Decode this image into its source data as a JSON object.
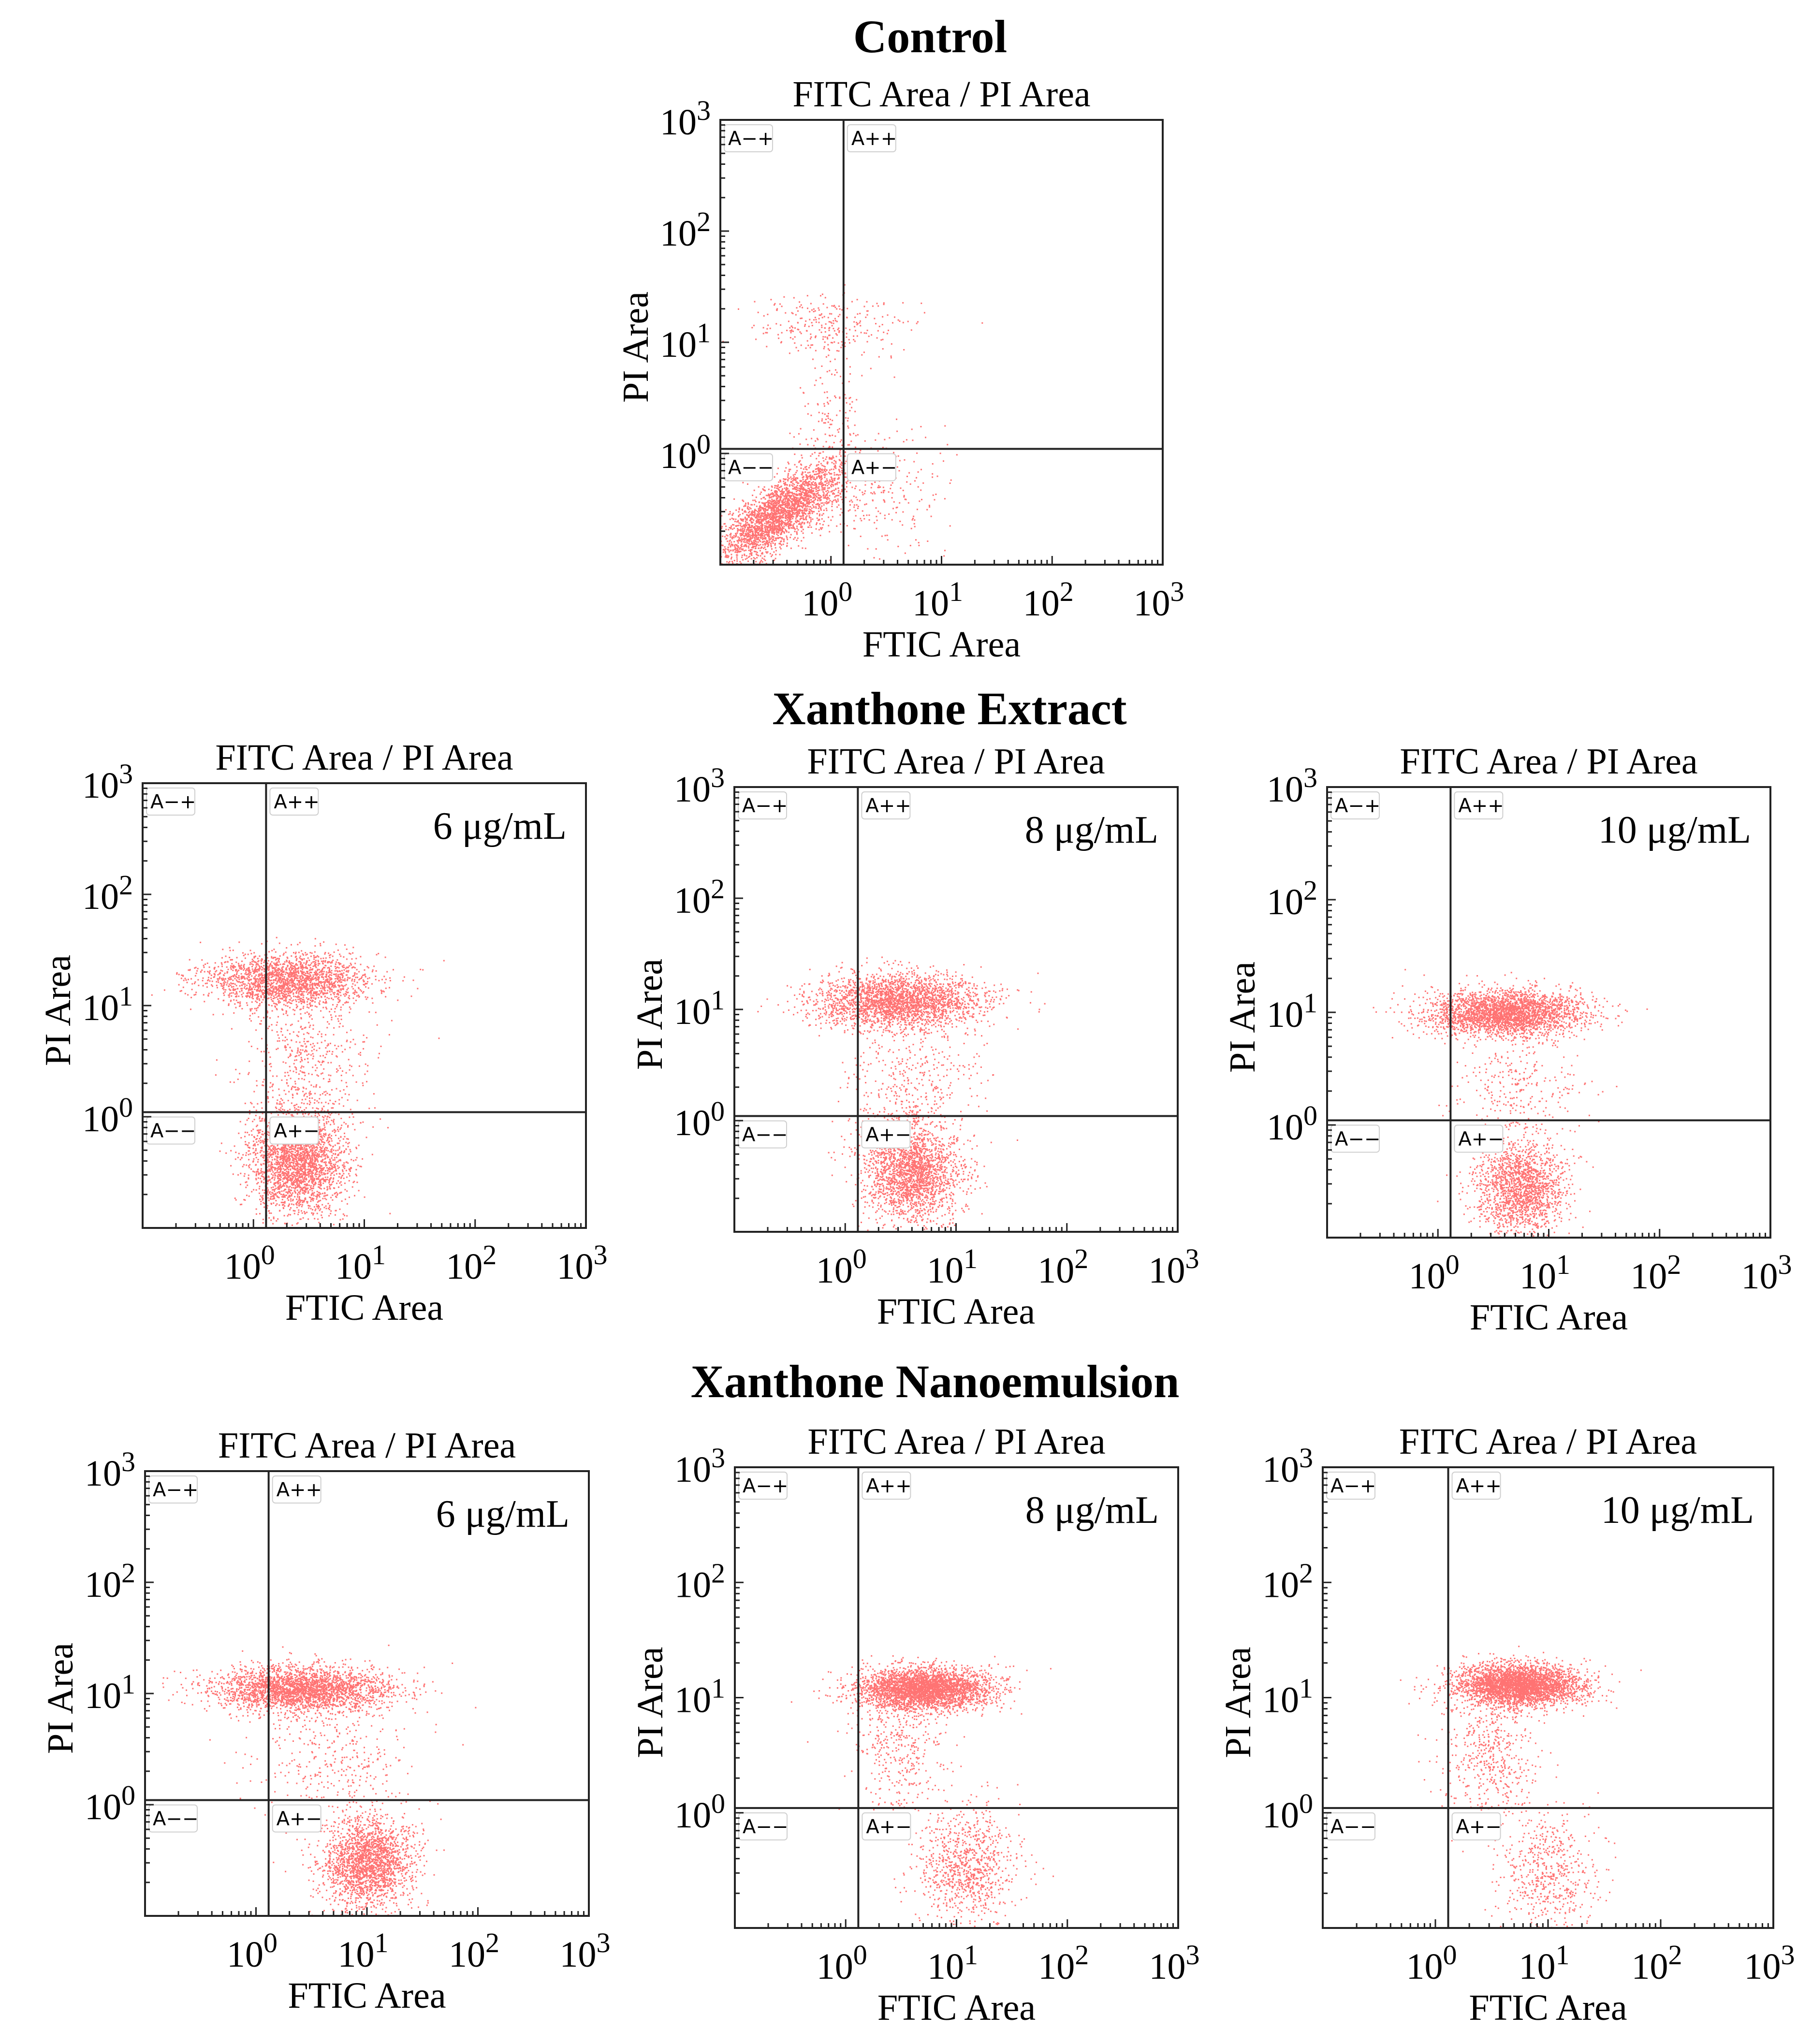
{
  "colors": {
    "events": "#ff0000",
    "axes": "#222222",
    "background": "#ffffff"
  },
  "groups": [
    {
      "id": "control",
      "title": "Control"
    },
    {
      "id": "extract",
      "title": "Xanthone Extract"
    },
    {
      "id": "nano",
      "title": "Xanthone Nanoemulsion"
    }
  ],
  "chart_data": [
    {
      "type": "scatter",
      "group": "Control",
      "title": "FITC Area / PI Area",
      "concentration": "",
      "xlabel": "FTIC Area",
      "ylabel": "PI Area",
      "xscale": "log",
      "yscale": "log",
      "xlim": [
        0.1,
        1000
      ],
      "ylim": [
        0.1,
        1000
      ],
      "x_ticks": [
        "10^0",
        "10^1",
        "10^2",
        "10^3"
      ],
      "y_ticks": [
        "10^0",
        "10^1",
        "10^2",
        "10^3"
      ],
      "gate": {
        "x": 1.3,
        "y": 1.1
      },
      "quadrants": [
        "A−+",
        "A++",
        "A−−",
        "A+−"
      ],
      "clusters": [
        {
          "x": 0.35,
          "y": 0.3,
          "sx": 0.28,
          "sy": 0.22,
          "n": 2600,
          "corr": 0.75
        },
        {
          "x": 1.0,
          "y": 15,
          "sx": 0.35,
          "sy": 0.14,
          "n": 260,
          "corr": 0
        },
        {
          "x": 2.0,
          "y": 0.5,
          "sx": 0.4,
          "sy": 0.3,
          "n": 320,
          "corr": 0
        },
        {
          "x": 1.0,
          "y": 2.5,
          "sx": 0.15,
          "sy": 0.35,
          "n": 140,
          "corr": 0
        }
      ]
    },
    {
      "type": "scatter",
      "group": "Xanthone Extract",
      "title": "FITC Area / PI Area",
      "concentration": "6 μg/mL",
      "xlabel": "FTIC Area",
      "ylabel": "PI Area",
      "xscale": "log",
      "yscale": "log",
      "xlim": [
        0.1,
        1000
      ],
      "ylim": [
        0.1,
        1000
      ],
      "x_ticks": [
        "10^0",
        "10^1",
        "10^2",
        "10^3"
      ],
      "y_ticks": [
        "10^0",
        "10^1",
        "10^2",
        "10^3"
      ],
      "gate": {
        "x": 1.3,
        "y": 1.1
      },
      "quadrants": [
        "A−+",
        "A++",
        "A−−",
        "A+−"
      ],
      "clusters": [
        {
          "x": 2.5,
          "y": 0.4,
          "sx": 0.22,
          "sy": 0.24,
          "n": 2600,
          "corr": 0
        },
        {
          "x": 2.0,
          "y": 17,
          "sx": 0.38,
          "sy": 0.12,
          "n": 2100,
          "corr": 0
        },
        {
          "x": 3.0,
          "y": 3.5,
          "sx": 0.3,
          "sy": 0.35,
          "n": 500,
          "corr": 0
        }
      ]
    },
    {
      "type": "scatter",
      "group": "Xanthone Extract",
      "title": "FITC Area / PI Area",
      "concentration": "8 μg/mL",
      "xlabel": "FTIC Area",
      "ylabel": "PI Area",
      "xscale": "log",
      "yscale": "log",
      "xlim": [
        0.1,
        1000
      ],
      "ylim": [
        0.1,
        1000
      ],
      "x_ticks": [
        "10^0",
        "10^1",
        "10^2",
        "10^3"
      ],
      "y_ticks": [
        "10^0",
        "10^1",
        "10^2",
        "10^3"
      ],
      "gate": {
        "x": 1.3,
        "y": 1.1
      },
      "quadrants": [
        "A−+",
        "A++",
        "A−−",
        "A+−"
      ],
      "clusters": [
        {
          "x": 4.0,
          "y": 0.35,
          "sx": 0.22,
          "sy": 0.22,
          "n": 2100,
          "corr": 0
        },
        {
          "x": 3.0,
          "y": 12,
          "sx": 0.38,
          "sy": 0.12,
          "n": 2500,
          "corr": 0
        },
        {
          "x": 4.0,
          "y": 2.5,
          "sx": 0.3,
          "sy": 0.35,
          "n": 450,
          "corr": 0
        }
      ]
    },
    {
      "type": "scatter",
      "group": "Xanthone Extract",
      "title": "FITC Area / PI Area",
      "concentration": "10 μg/mL",
      "xlabel": "FTIC Area",
      "ylabel": "PI Area",
      "xscale": "log",
      "yscale": "log",
      "xlim": [
        0.1,
        1000
      ],
      "ylim": [
        0.1,
        1000
      ],
      "x_ticks": [
        "10^0",
        "10^1",
        "10^2",
        "10^3"
      ],
      "y_ticks": [
        "10^0",
        "10^1",
        "10^2",
        "10^3"
      ],
      "gate": {
        "x": 1.3,
        "y": 1.1
      },
      "quadrants": [
        "A−+",
        "A++",
        "A−−",
        "A+−"
      ],
      "clusters": [
        {
          "x": 5.5,
          "y": 0.28,
          "sx": 0.2,
          "sy": 0.2,
          "n": 1700,
          "corr": 0
        },
        {
          "x": 4.0,
          "y": 10,
          "sx": 0.35,
          "sy": 0.1,
          "n": 2800,
          "corr": 0
        },
        {
          "x": 5.0,
          "y": 2.2,
          "sx": 0.3,
          "sy": 0.3,
          "n": 300,
          "corr": 0
        }
      ]
    },
    {
      "type": "scatter",
      "group": "Xanthone Nanoemulsion",
      "title": "FITC Area / PI Area",
      "concentration": "6 μg/mL",
      "xlabel": "FTIC Area",
      "ylabel": "PI Area",
      "xscale": "log",
      "yscale": "log",
      "xlim": [
        0.1,
        1000
      ],
      "ylim": [
        0.1,
        1000
      ],
      "x_ticks": [
        "10^0",
        "10^1",
        "10^2",
        "10^3"
      ],
      "y_ticks": [
        "10^0",
        "10^1",
        "10^2",
        "10^3"
      ],
      "gate": {
        "x": 1.3,
        "y": 1.1
      },
      "quadrants": [
        "A−+",
        "A++",
        "A−−",
        "A+−"
      ],
      "clusters": [
        {
          "x": 10,
          "y": 0.3,
          "sx": 0.2,
          "sy": 0.2,
          "n": 2100,
          "corr": 0
        },
        {
          "x": 2.5,
          "y": 11,
          "sx": 0.4,
          "sy": 0.1,
          "n": 2700,
          "corr": 0
        },
        {
          "x": 5.0,
          "y": 2.5,
          "sx": 0.35,
          "sy": 0.35,
          "n": 400,
          "corr": 0
        }
      ]
    },
    {
      "type": "scatter",
      "group": "Xanthone Nanoemulsion",
      "title": "FITC Area / PI Area",
      "concentration": "8 μg/mL",
      "xlabel": "FTIC Area",
      "ylabel": "PI Area",
      "xscale": "log",
      "yscale": "log",
      "xlim": [
        0.1,
        1000
      ],
      "ylim": [
        0.1,
        1000
      ],
      "x_ticks": [
        "10^0",
        "10^1",
        "10^2",
        "10^3"
      ],
      "y_ticks": [
        "10^0",
        "10^1",
        "10^2",
        "10^3"
      ],
      "gate": {
        "x": 1.3,
        "y": 1.1
      },
      "quadrants": [
        "A−+",
        "A++",
        "A−−",
        "A+−"
      ],
      "clusters": [
        {
          "x": 12,
          "y": 0.35,
          "sx": 0.22,
          "sy": 0.25,
          "n": 900,
          "corr": 0
        },
        {
          "x": 5.0,
          "y": 12,
          "sx": 0.3,
          "sy": 0.09,
          "n": 3300,
          "corr": 0
        },
        {
          "x": 3.0,
          "y": 3.5,
          "sx": 0.2,
          "sy": 0.3,
          "n": 400,
          "corr": 0
        }
      ]
    },
    {
      "type": "scatter",
      "group": "Xanthone Nanoemulsion",
      "title": "FITC Area / PI Area",
      "concentration": "10 μg/mL",
      "xlabel": "FTIC Area",
      "ylabel": "PI Area",
      "xscale": "log",
      "yscale": "log",
      "xlim": [
        0.1,
        1000
      ],
      "ylim": [
        0.1,
        1000
      ],
      "x_ticks": [
        "10^0",
        "10^1",
        "10^2",
        "10^3"
      ],
      "y_ticks": [
        "10^0",
        "10^1",
        "10^2",
        "10^3"
      ],
      "gate": {
        "x": 1.3,
        "y": 1.1
      },
      "quadrants": [
        "A−+",
        "A++",
        "A−−",
        "A+−"
      ],
      "clusters": [
        {
          "x": 10,
          "y": 0.3,
          "sx": 0.22,
          "sy": 0.25,
          "n": 550,
          "corr": 0
        },
        {
          "x": 5.5,
          "y": 13,
          "sx": 0.28,
          "sy": 0.09,
          "n": 3300,
          "corr": 0
        },
        {
          "x": 3.0,
          "y": 3.0,
          "sx": 0.2,
          "sy": 0.3,
          "n": 500,
          "corr": 0
        }
      ]
    }
  ]
}
